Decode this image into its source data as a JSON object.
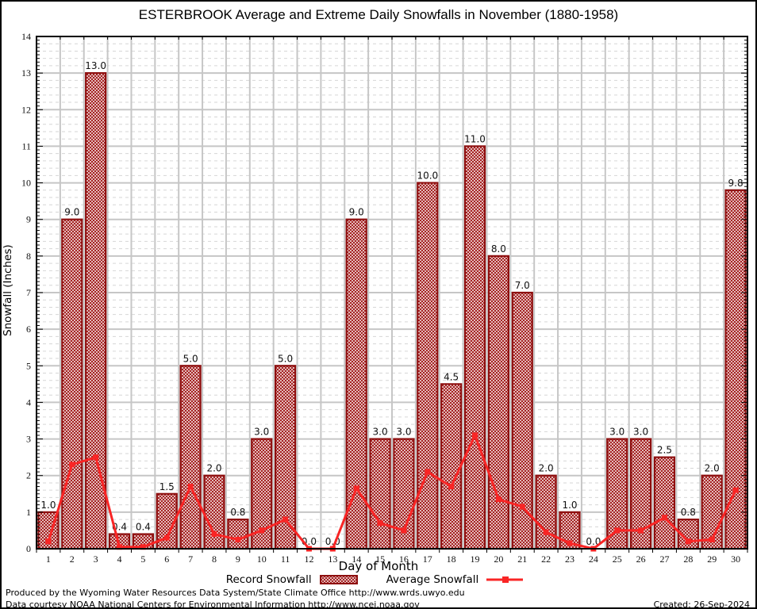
{
  "chart_data": {
    "type": "bar",
    "title": "ESTERBROOK Average and Extreme Daily Snowfalls in November (1880-1958)",
    "xlabel": "Day of Month",
    "ylabel": "Snowfall (Inches)",
    "ylim": [
      0,
      14
    ],
    "y_major_step": 1,
    "y_minor_grid_step": 0.2,
    "y_minor_tick_step": 0.1,
    "grid": true,
    "legend_position": "bottom",
    "categories": [
      1,
      2,
      3,
      4,
      5,
      6,
      7,
      8,
      9,
      10,
      11,
      12,
      13,
      14,
      15,
      16,
      17,
      18,
      19,
      20,
      21,
      22,
      23,
      24,
      25,
      26,
      27,
      28,
      29,
      30
    ],
    "series": [
      {
        "name": "Record Snowfall",
        "type": "bar",
        "values": [
          1.0,
          9.0,
          13.0,
          0.4,
          0.4,
          1.5,
          5.0,
          2.0,
          0.8,
          3.0,
          5.0,
          0.0,
          0.0,
          9.0,
          3.0,
          3.0,
          10.0,
          4.5,
          11.0,
          8.0,
          7.0,
          2.0,
          1.0,
          0.0,
          3.0,
          3.0,
          2.5,
          0.8,
          2.0,
          9.8
        ],
        "labels": [
          "1.0",
          "9.0",
          "13.0",
          "0.4",
          "0.4",
          "1.5",
          "5.0",
          "2.0",
          "0.8",
          "3.0",
          "5.0",
          "0.0",
          "0.0",
          "9.0",
          "3.0",
          "3.0",
          "10.0",
          "4.5",
          "11.0",
          "8.0",
          "7.0",
          "2.0",
          "1.0",
          "0.0",
          "3.0",
          "3.0",
          "2.5",
          "0.8",
          "2.0",
          "9.8"
        ]
      },
      {
        "name": "Average Snowfall",
        "type": "line",
        "values": [
          0.2,
          2.3,
          2.5,
          0.05,
          0.05,
          0.3,
          1.7,
          0.4,
          0.25,
          0.5,
          0.8,
          0.0,
          0.0,
          1.65,
          0.7,
          0.5,
          2.1,
          1.7,
          3.1,
          1.35,
          1.15,
          0.45,
          0.15,
          0.0,
          0.5,
          0.5,
          0.85,
          0.2,
          0.25,
          1.6
        ]
      }
    ],
    "colors": {
      "bar_border": "#8e0f0f",
      "bar_hatch": "#a01616",
      "line": "#f92525",
      "grid_major": "#c6c6c6",
      "grid_minor": "#d6d6d6",
      "axis": "#000000"
    }
  },
  "footer": {
    "line1": "Produced by the Wyoming Water Resources Data System/State Climate Office http://www.wrds.uwyo.edu",
    "line2": "Data courtesy NOAA National Centers for Environmental Information http://www.ncei.noaa.gov",
    "created": "Created: 26-Sep-2024"
  }
}
